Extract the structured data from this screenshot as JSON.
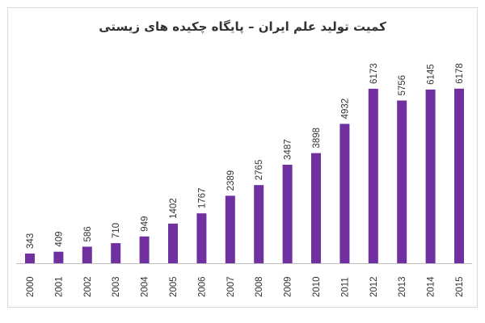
{
  "chart_data": {
    "type": "bar",
    "title": "کمیت تولید علم ایران – پایگاه چکیده های زیستی",
    "categories": [
      "2000",
      "2001",
      "2002",
      "2003",
      "2004",
      "2005",
      "2006",
      "2007",
      "2008",
      "2009",
      "2010",
      "2011",
      "2012",
      "2013",
      "2014",
      "2015"
    ],
    "values": [
      343,
      409,
      586,
      710,
      949,
      1402,
      1767,
      2389,
      2765,
      3487,
      3898,
      4932,
      6173,
      5756,
      6145,
      6178
    ],
    "data_labels": true,
    "grid": false,
    "legend": "none",
    "colors": {
      "bar": "#7030a0",
      "axis": "#bfbfbf",
      "text": "#333333"
    }
  }
}
